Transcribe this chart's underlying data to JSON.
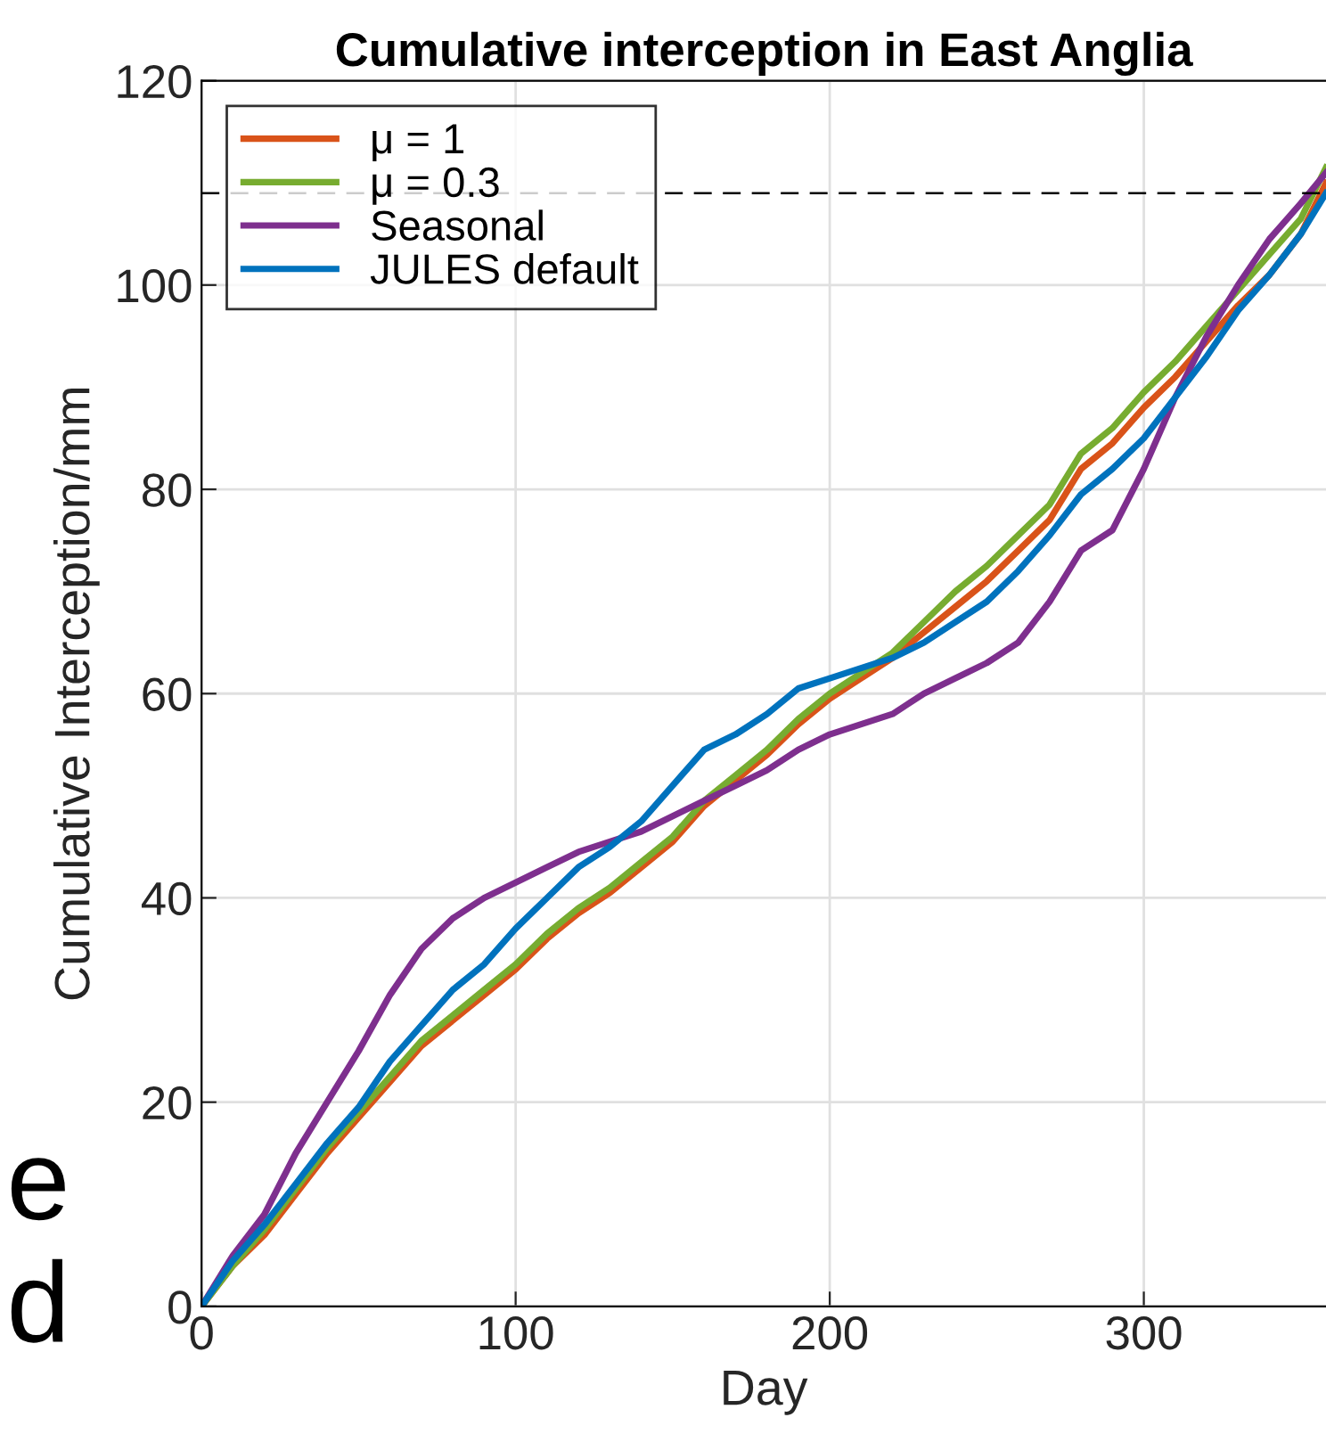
{
  "chart_data": {
    "type": "line",
    "title": "Cumulative interception in East Anglia",
    "xlabel": "Day",
    "ylabel": "Cumulative Interception/mm",
    "x": [
      0,
      10,
      20,
      30,
      40,
      50,
      60,
      70,
      80,
      90,
      100,
      110,
      120,
      130,
      140,
      150,
      160,
      170,
      180,
      190,
      200,
      210,
      220,
      230,
      240,
      250,
      260,
      270,
      280,
      290,
      300,
      310,
      320,
      330,
      340,
      350,
      358
    ],
    "series": [
      {
        "name": "μ = 1",
        "color": "#d95319",
        "values": [
          0,
          4,
          7,
          11,
          15,
          18.5,
          22,
          25.5,
          28,
          30.5,
          33,
          36,
          38.5,
          40.5,
          43,
          45.5,
          49,
          51.5,
          54,
          57,
          59.5,
          61.5,
          63.5,
          66,
          68.5,
          71,
          74,
          77,
          82,
          84.5,
          88,
          91,
          94.5,
          98,
          101,
          105,
          110
        ]
      },
      {
        "name": "μ = 0.3",
        "color": "#77ac30",
        "values": [
          0,
          4,
          7.5,
          11.5,
          15.5,
          19,
          22.5,
          26,
          28.5,
          31,
          33.5,
          36.5,
          39,
          41,
          43.5,
          46,
          49.5,
          52,
          54.5,
          57.5,
          60,
          62,
          64,
          67,
          70,
          72.5,
          75.5,
          78.5,
          83.5,
          86,
          89.5,
          92.5,
          96,
          99.5,
          103,
          106.5,
          111.5
        ]
      },
      {
        "name": "Seasonal",
        "color": "#7e2f8e",
        "values": [
          0,
          5,
          9,
          15,
          20,
          25,
          30.5,
          35,
          38,
          40,
          41.5,
          43,
          44.5,
          45.5,
          46.5,
          48,
          49.5,
          51,
          52.5,
          54.5,
          56,
          57,
          58,
          60,
          61.5,
          63,
          65,
          69,
          74,
          76,
          82,
          89,
          95,
          100,
          104.5,
          108,
          111
        ]
      },
      {
        "name": "JULES default",
        "color": "#0072bd",
        "values": [
          0,
          4.5,
          8,
          12,
          16,
          19.5,
          24,
          27.5,
          31,
          33.5,
          37,
          40,
          43,
          45,
          47.5,
          51,
          54.5,
          56,
          58,
          60.5,
          61.5,
          62.5,
          63.5,
          65,
          67,
          69,
          72,
          75.5,
          79.5,
          82,
          85,
          89,
          93,
          97.5,
          101,
          105,
          109
        ]
      }
    ],
    "xlim": [
      0,
      358
    ],
    "ylim": [
      0,
      120
    ],
    "xticks": [
      0,
      100,
      200,
      300
    ],
    "yticks": [
      0,
      20,
      40,
      60,
      80,
      100,
      120
    ],
    "ref_lines": [
      {
        "axis": "y",
        "value": 109,
        "color": "#000000",
        "line_style": "dashed"
      }
    ],
    "grid": true,
    "legend": "top left",
    "annotations": [
      "e",
      "d"
    ]
  }
}
